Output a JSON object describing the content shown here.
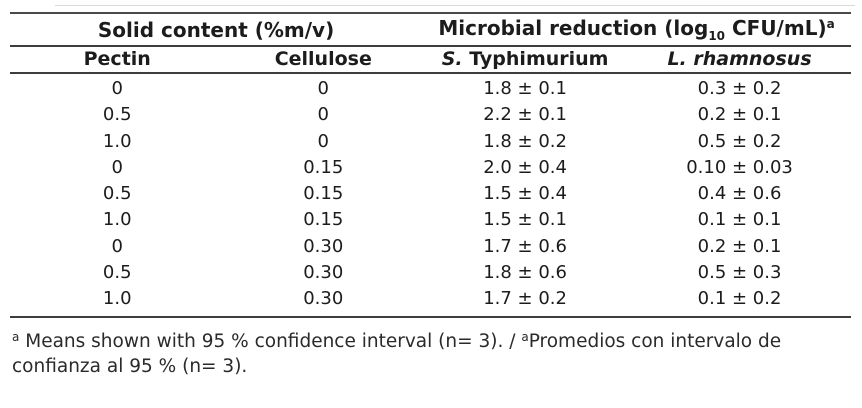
{
  "table": {
    "group_header": {
      "solid_content": "Solid content (%m/v)",
      "microbial_pre": "Microbial reduction (log",
      "microbial_sub": "10",
      "microbial_post": " CFU/mL)",
      "microbial_sup": "a"
    },
    "columns": {
      "pectin": "Pectin",
      "cellulose": "Cellulose",
      "styphimurium_genus": "S.",
      "styphimurium_species": " Typhimurium",
      "lrhamnosus": "L. rhamnosus"
    },
    "rows": [
      [
        "0",
        "0",
        "1.8 ± 0.1",
        "0.3 ± 0.2"
      ],
      [
        "0.5",
        "0",
        "2.2 ± 0.1",
        "0.2 ± 0.1"
      ],
      [
        "1.0",
        "0",
        "1.8 ± 0.2",
        "0.5 ± 0.2"
      ],
      [
        "0",
        "0.15",
        "2.0 ± 0.4",
        "0.10 ± 0.03"
      ],
      [
        "0.5",
        "0.15",
        "1.5 ± 0.4",
        "0.4 ± 0.6"
      ],
      [
        "1.0",
        "0.15",
        "1.5 ± 0.1",
        "0.1 ± 0.1"
      ],
      [
        "0",
        "0.30",
        "1.7 ± 0.6",
        "0.2 ± 0.1"
      ],
      [
        "0.5",
        "0.30",
        "1.8 ± 0.6",
        "0.5 ± 0.3"
      ],
      [
        "1.0",
        "0.30",
        "1.7 ± 0.2",
        "0.1 ± 0.2"
      ]
    ]
  },
  "footnote": {
    "sup1": "a",
    "text1": " Means shown with 95 % confidence interval (n= 3). / ",
    "sup2": "a",
    "text2": "Promedios con intervalo de confianza al 95 % (n= 3)."
  }
}
